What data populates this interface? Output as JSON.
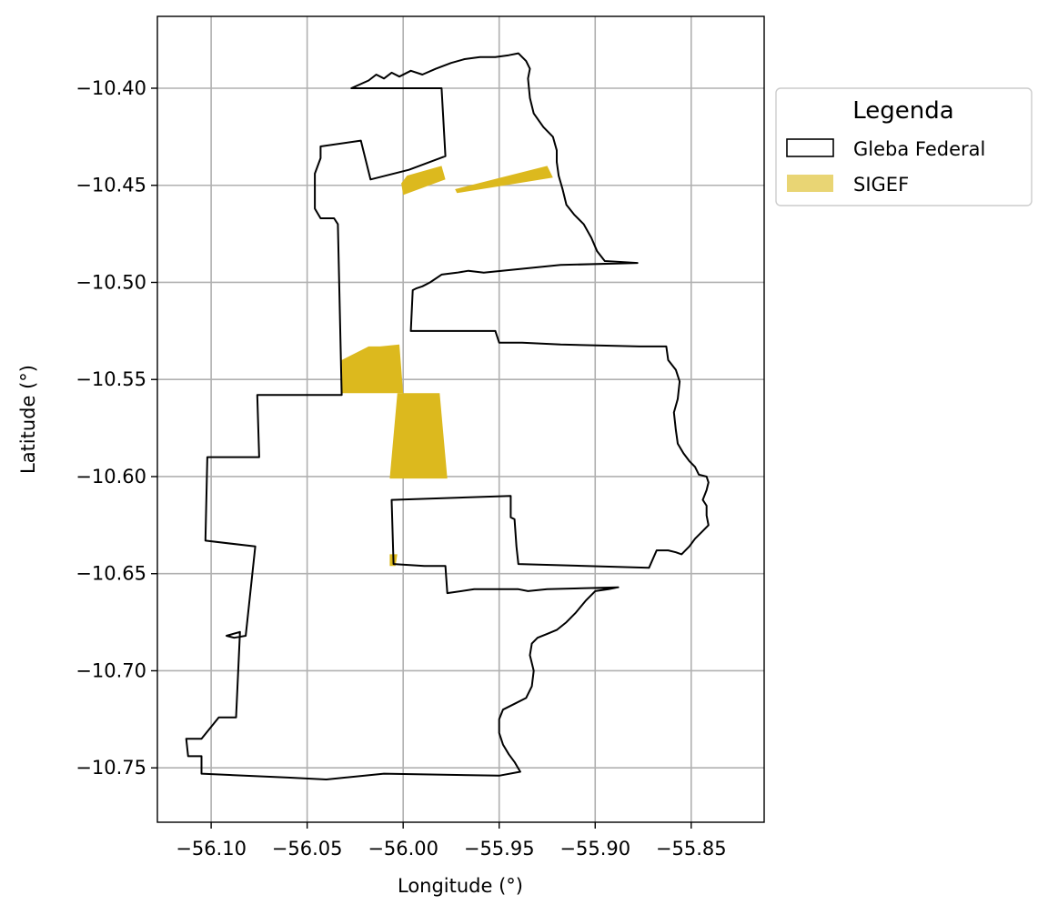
{
  "chart_data": {
    "type": "map",
    "xlabel": "Longitude (°)",
    "ylabel": "Latitude (°)",
    "xlim": [
      -56.128,
      -55.812
    ],
    "ylim": [
      -10.778,
      -10.363
    ],
    "xticks": [
      -56.1,
      -56.05,
      -56.0,
      -55.95,
      -55.9,
      -55.85
    ],
    "xtick_labels": [
      "−56.10",
      "−56.05",
      "−56.00",
      "−55.95",
      "−55.90",
      "−55.85"
    ],
    "yticks": [
      -10.4,
      -10.45,
      -10.5,
      -10.55,
      -10.6,
      -10.65,
      -10.7,
      -10.75
    ],
    "ytick_labels": [
      "−10.40",
      "−10.45",
      "−10.50",
      "−10.55",
      "−10.60",
      "−10.65",
      "−10.70",
      "−10.75"
    ],
    "grid": true,
    "legend": {
      "title": "Legenda",
      "position": "outside-upper-right",
      "entries": [
        {
          "label": "Gleba Federal",
          "style": "outline"
        },
        {
          "label": "SIGEF",
          "style": "fill"
        }
      ]
    },
    "colors": {
      "gleba_edge": "#000000",
      "sigef_fill": "#dcb91e",
      "sigef_legend_fill": "#e9d574",
      "grid": "#b0b0b0"
    },
    "layers": [
      {
        "name": "Gleba Federal",
        "geometry": "polygon",
        "coordinates": [
          [
            -56.027,
            -10.4
          ],
          [
            -56.018,
            -10.396
          ],
          [
            -56.014,
            -10.393
          ],
          [
            -56.01,
            -10.395
          ],
          [
            -56.006,
            -10.392
          ],
          [
            -56.002,
            -10.394
          ],
          [
            -55.996,
            -10.391
          ],
          [
            -55.99,
            -10.393
          ],
          [
            -55.983,
            -10.39
          ],
          [
            -55.975,
            -10.387
          ],
          [
            -55.968,
            -10.385
          ],
          [
            -55.96,
            -10.384
          ],
          [
            -55.952,
            -10.384
          ],
          [
            -55.945,
            -10.383
          ],
          [
            -55.94,
            -10.382
          ],
          [
            -55.936,
            -10.386
          ],
          [
            -55.934,
            -10.39
          ],
          [
            -55.935,
            -10.395
          ],
          [
            -55.934,
            -10.405
          ],
          [
            -55.932,
            -10.413
          ],
          [
            -55.927,
            -10.42
          ],
          [
            -55.922,
            -10.425
          ],
          [
            -55.92,
            -10.432
          ],
          [
            -55.92,
            -10.438
          ],
          [
            -55.919,
            -10.445
          ],
          [
            -55.917,
            -10.452
          ],
          [
            -55.915,
            -10.46
          ],
          [
            -55.911,
            -10.465
          ],
          [
            -55.906,
            -10.47
          ],
          [
            -55.902,
            -10.477
          ],
          [
            -55.899,
            -10.484
          ],
          [
            -55.895,
            -10.489
          ],
          [
            -55.878,
            -10.49
          ],
          [
            -55.918,
            -10.491
          ],
          [
            -55.958,
            -10.495
          ],
          [
            -55.966,
            -10.494
          ],
          [
            -55.972,
            -10.495
          ],
          [
            -55.98,
            -10.496
          ],
          [
            -55.986,
            -10.5
          ],
          [
            -55.99,
            -10.502
          ],
          [
            -55.993,
            -10.503
          ],
          [
            -55.995,
            -10.504
          ],
          [
            -55.996,
            -10.525
          ],
          [
            -55.977,
            -10.525
          ],
          [
            -55.952,
            -10.525
          ],
          [
            -55.95,
            -10.531
          ],
          [
            -55.938,
            -10.531
          ],
          [
            -55.918,
            -10.532
          ],
          [
            -55.877,
            -10.533
          ],
          [
            -55.863,
            -10.533
          ],
          [
            -55.862,
            -10.54
          ],
          [
            -55.858,
            -10.545
          ],
          [
            -55.856,
            -10.551
          ],
          [
            -55.857,
            -10.56
          ],
          [
            -55.859,
            -10.567
          ],
          [
            -55.858,
            -10.576
          ],
          [
            -55.857,
            -10.583
          ],
          [
            -55.854,
            -10.588
          ],
          [
            -55.851,
            -10.592
          ],
          [
            -55.848,
            -10.595
          ],
          [
            -55.846,
            -10.599
          ],
          [
            -55.842,
            -10.6
          ],
          [
            -55.841,
            -10.603
          ],
          [
            -55.842,
            -10.607
          ],
          [
            -55.844,
            -10.612
          ],
          [
            -55.842,
            -10.615
          ],
          [
            -55.842,
            -10.62
          ],
          [
            -55.841,
            -10.625
          ],
          [
            -55.844,
            -10.628
          ],
          [
            -55.848,
            -10.632
          ],
          [
            -55.851,
            -10.636
          ],
          [
            -55.853,
            -10.638
          ],
          [
            -55.855,
            -10.64
          ],
          [
            -55.858,
            -10.639
          ],
          [
            -55.862,
            -10.638
          ],
          [
            -55.868,
            -10.638
          ],
          [
            -55.872,
            -10.647
          ],
          [
            -55.94,
            -10.645
          ],
          [
            -55.941,
            -10.636
          ],
          [
            -55.942,
            -10.622
          ],
          [
            -55.944,
            -10.621
          ],
          [
            -55.944,
            -10.61
          ],
          [
            -56.006,
            -10.612
          ],
          [
            -56.005,
            -10.645
          ],
          [
            -55.989,
            -10.646
          ],
          [
            -55.978,
            -10.646
          ],
          [
            -55.977,
            -10.66
          ],
          [
            -55.963,
            -10.658
          ],
          [
            -55.952,
            -10.658
          ],
          [
            -55.94,
            -10.658
          ],
          [
            -55.935,
            -10.659
          ],
          [
            -55.925,
            -10.658
          ],
          [
            -55.888,
            -10.657
          ],
          [
            -55.893,
            -10.658
          ],
          [
            -55.9,
            -10.659
          ],
          [
            -55.905,
            -10.664
          ],
          [
            -55.91,
            -10.67
          ],
          [
            -55.915,
            -10.675
          ],
          [
            -55.92,
            -10.679
          ],
          [
            -55.925,
            -10.681
          ],
          [
            -55.93,
            -10.683
          ],
          [
            -55.933,
            -10.686
          ],
          [
            -55.934,
            -10.692
          ],
          [
            -55.932,
            -10.7
          ],
          [
            -55.933,
            -10.708
          ],
          [
            -55.936,
            -10.714
          ],
          [
            -55.942,
            -10.717
          ],
          [
            -55.948,
            -10.72
          ],
          [
            -55.95,
            -10.725
          ],
          [
            -55.95,
            -10.732
          ],
          [
            -55.948,
            -10.738
          ],
          [
            -55.945,
            -10.743
          ],
          [
            -55.942,
            -10.747
          ],
          [
            -55.939,
            -10.752
          ],
          [
            -55.95,
            -10.754
          ],
          [
            -56.01,
            -10.753
          ],
          [
            -56.04,
            -10.756
          ],
          [
            -56.06,
            -10.755
          ],
          [
            -56.105,
            -10.753
          ],
          [
            -56.105,
            -10.744
          ],
          [
            -56.112,
            -10.744
          ],
          [
            -56.113,
            -10.735
          ],
          [
            -56.105,
            -10.735
          ],
          [
            -56.096,
            -10.724
          ],
          [
            -56.087,
            -10.724
          ],
          [
            -56.085,
            -10.68
          ],
          [
            -56.092,
            -10.682
          ],
          [
            -56.088,
            -10.683
          ],
          [
            -56.082,
            -10.682
          ],
          [
            -56.077,
            -10.636
          ],
          [
            -56.103,
            -10.633
          ],
          [
            -56.102,
            -10.59
          ],
          [
            -56.075,
            -10.59
          ],
          [
            -56.076,
            -10.558
          ],
          [
            -56.032,
            -10.558
          ],
          [
            -56.034,
            -10.47
          ],
          [
            -56.036,
            -10.467
          ],
          [
            -56.043,
            -10.467
          ],
          [
            -56.046,
            -10.462
          ],
          [
            -56.046,
            -10.444
          ],
          [
            -56.043,
            -10.436
          ],
          [
            -56.043,
            -10.43
          ],
          [
            -56.022,
            -10.427
          ],
          [
            -56.017,
            -10.447
          ],
          [
            -55.997,
            -10.442
          ],
          [
            -55.978,
            -10.435
          ],
          [
            -55.98,
            -10.4
          ],
          [
            -56.027,
            -10.4
          ]
        ]
      },
      {
        "name": "SIGEF",
        "geometry": "multipolygon",
        "coordinates": [
          [
            [
              -55.998,
              -10.445
            ],
            [
              -55.98,
              -10.44
            ],
            [
              -55.978,
              -10.447
            ],
            [
              -56.0,
              -10.455
            ],
            [
              -56.001,
              -10.449
            ]
          ],
          [
            [
              -55.973,
              -10.452
            ],
            [
              -55.925,
              -10.44
            ],
            [
              -55.922,
              -10.446
            ],
            [
              -55.972,
              -10.454
            ]
          ],
          [
            [
              -56.032,
              -10.54
            ],
            [
              -56.018,
              -10.533
            ],
            [
              -56.012,
              -10.533
            ],
            [
              -56.002,
              -10.532
            ],
            [
              -56.0,
              -10.557
            ],
            [
              -56.032,
              -10.557
            ]
          ],
          [
            [
              -56.003,
              -10.557
            ],
            [
              -55.981,
              -10.557
            ],
            [
              -55.977,
              -10.601
            ],
            [
              -56.007,
              -10.601
            ]
          ],
          [
            [
              -56.007,
              -10.64
            ],
            [
              -56.003,
              -10.64
            ],
            [
              -56.004,
              -10.646
            ],
            [
              -56.007,
              -10.646
            ]
          ]
        ]
      }
    ]
  }
}
